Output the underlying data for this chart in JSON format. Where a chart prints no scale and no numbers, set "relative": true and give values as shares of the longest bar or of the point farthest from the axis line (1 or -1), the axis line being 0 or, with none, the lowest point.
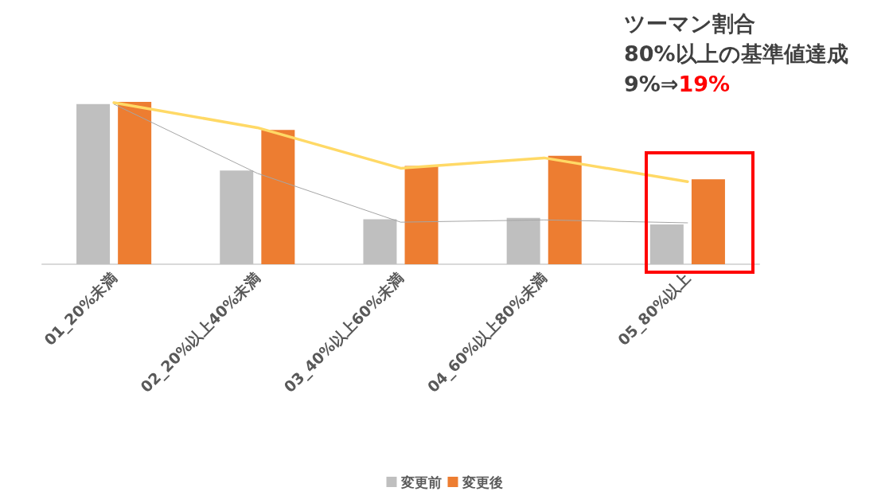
{
  "chart_data": {
    "type": "bar",
    "relative": true,
    "categories": [
      "01_20%未満",
      "02_20%以上40%未満",
      "03_40%以上60%未満",
      "04_60%以上80%未満",
      "05_80%以上"
    ],
    "series": [
      {
        "name": "変更前",
        "color": "#bfbfbf",
        "values": [
          0.986,
          0.577,
          0.277,
          0.286,
          0.245
        ]
      },
      {
        "name": "変更後",
        "color": "#ed7d31",
        "values": [
          1,
          0.827,
          0.605,
          0.668,
          0.523
        ]
      },
      {
        "type": "line",
        "color": "#a5a5a5",
        "values": [
          0.986,
          0.56,
          0.259,
          0.273,
          0.255
        ]
      },
      {
        "type": "line",
        "color": "#ffd966",
        "values": [
          0.995,
          0.841,
          0.591,
          0.655,
          0.509
        ]
      }
    ],
    "annotations": [
      "ツーマン割合",
      "80%以上の基準値達成",
      "9%⇒19%"
    ],
    "legend": "bottom",
    "marker": "none"
  }
}
